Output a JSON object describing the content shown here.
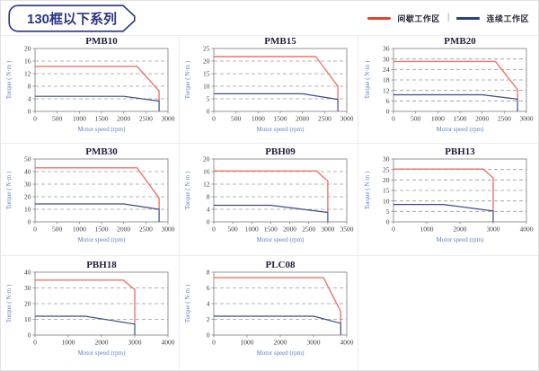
{
  "page": {
    "title": "130框以下系列"
  },
  "legend": {
    "separator": "|",
    "items": [
      {
        "name": "intermittent-zone",
        "label": "间歇工作区",
        "color": "#e0472e"
      },
      {
        "name": "continuous-zone",
        "label": "连续工作区",
        "color": "#27437f"
      }
    ]
  },
  "colors": {
    "curve_red": "#ed7468",
    "curve_blue": "#3a4d85",
    "grid_dash": "#9a9a9a",
    "plot_border": "#8a8a8a",
    "title_text": "#23233c",
    "badge_navy": "#2b3580",
    "cell_border": "#ececec",
    "axis_label_blue": "#5b83c4"
  },
  "chart_data": [
    {
      "type": "line",
      "title": "PMB10",
      "xlabel": "Motor speed (rpm)",
      "ylabel": "Torque ( N·m )",
      "xlim": [
        0,
        3000
      ],
      "ylim": [
        0,
        20
      ],
      "xticks": [
        0,
        500,
        1000,
        1500,
        2000,
        2500,
        3000
      ],
      "yticks": [
        0,
        4,
        8,
        12,
        16,
        20
      ],
      "grid": "horizontal-dashed",
      "legend_position": "none",
      "series": [
        {
          "name": "间歇工作区",
          "color_key": "curve_red",
          "points": [
            [
              0,
              14.3
            ],
            [
              2300,
              14.3
            ],
            [
              2800,
              6.5
            ],
            [
              2800,
              3.3
            ]
          ]
        },
        {
          "name": "连续工作区",
          "color_key": "curve_blue",
          "points": [
            [
              0,
              4.8
            ],
            [
              2000,
              4.8
            ],
            [
              2800,
              3.3
            ],
            [
              2800,
              0
            ]
          ]
        }
      ]
    },
    {
      "type": "line",
      "title": "PMB15",
      "xlabel": "Motor speed (rpm)",
      "ylabel": "Torque ( N·m )",
      "xlim": [
        0,
        3000
      ],
      "ylim": [
        0,
        25
      ],
      "xticks": [
        0,
        500,
        1000,
        1500,
        2000,
        2500,
        3000
      ],
      "yticks": [
        0,
        5,
        10,
        15,
        20,
        25
      ],
      "grid": "horizontal-dashed",
      "legend_position": "none",
      "series": [
        {
          "name": "间歇工作区",
          "color_key": "curve_red",
          "points": [
            [
              0,
              21.8
            ],
            [
              2300,
              21.8
            ],
            [
              2800,
              10
            ],
            [
              2800,
              4.8
            ]
          ]
        },
        {
          "name": "连续工作区",
          "color_key": "curve_blue",
          "points": [
            [
              0,
              7
            ],
            [
              2000,
              7
            ],
            [
              2800,
              4.8
            ],
            [
              2800,
              0
            ]
          ]
        }
      ]
    },
    {
      "type": "line",
      "title": "PMB20",
      "xlabel": "Motor speed (rpm)",
      "ylabel": "Torque ( N·m )",
      "xlim": [
        0,
        3000
      ],
      "ylim": [
        0,
        36
      ],
      "xticks": [
        0,
        500,
        1000,
        1500,
        2000,
        2500,
        3000
      ],
      "yticks": [
        0,
        6,
        12,
        18,
        24,
        30,
        36
      ],
      "grid": "horizontal-dashed",
      "legend_position": "none",
      "series": [
        {
          "name": "间歇工作区",
          "color_key": "curve_red",
          "points": [
            [
              0,
              28.6
            ],
            [
              2300,
              28.6
            ],
            [
              2800,
              12.5
            ],
            [
              2800,
              7
            ]
          ]
        },
        {
          "name": "连续工作区",
          "color_key": "curve_blue",
          "points": [
            [
              0,
              9.5
            ],
            [
              2000,
              9.5
            ],
            [
              2800,
              7
            ],
            [
              2800,
              0
            ]
          ]
        }
      ]
    },
    {
      "type": "line",
      "title": "PMB30",
      "xlabel": "Motor speed (rpm)",
      "ylabel": "Torque ( N·m )",
      "xlim": [
        0,
        3000
      ],
      "ylim": [
        0,
        50
      ],
      "xticks": [
        0,
        500,
        1000,
        1500,
        2000,
        2500,
        3000
      ],
      "yticks": [
        0,
        10,
        20,
        30,
        40,
        50
      ],
      "grid": "horizontal-dashed",
      "legend_position": "none",
      "series": [
        {
          "name": "间歇工作区",
          "color_key": "curve_red",
          "points": [
            [
              0,
              43
            ],
            [
              2300,
              43
            ],
            [
              2800,
              19
            ],
            [
              2800,
              10
            ]
          ]
        },
        {
          "name": "连续工作区",
          "color_key": "curve_blue",
          "points": [
            [
              0,
              14.3
            ],
            [
              2000,
              14.3
            ],
            [
              2800,
              10
            ],
            [
              2800,
              0
            ]
          ]
        }
      ]
    },
    {
      "type": "line",
      "title": "PBH09",
      "xlabel": "Motor speed (rpm)",
      "ylabel": "Torque ( N·m )",
      "xlim": [
        0,
        3500
      ],
      "ylim": [
        0,
        20
      ],
      "xticks": [
        0,
        500,
        1000,
        1500,
        2000,
        2500,
        3000,
        3500
      ],
      "yticks": [
        0,
        4,
        8,
        12,
        16,
        20
      ],
      "grid": "horizontal-dashed",
      "legend_position": "none",
      "series": [
        {
          "name": "间歇工作区",
          "color_key": "curve_red",
          "points": [
            [
              0,
              16.2
            ],
            [
              2700,
              16.2
            ],
            [
              3000,
              13
            ],
            [
              3000,
              3
            ]
          ]
        },
        {
          "name": "连续工作区",
          "color_key": "curve_blue",
          "points": [
            [
              0,
              5.3
            ],
            [
              1500,
              5.3
            ],
            [
              3000,
              3
            ],
            [
              3000,
              0
            ]
          ]
        }
      ]
    },
    {
      "type": "line",
      "title": "PBH13",
      "xlabel": "Motor speed (rpm)",
      "ylabel": "Torque ( N·m )",
      "xlim": [
        0,
        4000
      ],
      "ylim": [
        0,
        30
      ],
      "xticks": [
        0,
        1000,
        2000,
        3000,
        4000
      ],
      "yticks": [
        0,
        5,
        10,
        15,
        20,
        25,
        30
      ],
      "grid": "horizontal-dashed",
      "legend_position": "none",
      "series": [
        {
          "name": "间歇工作区",
          "color_key": "curve_red",
          "points": [
            [
              0,
              25.2
            ],
            [
              2700,
              25.2
            ],
            [
              3000,
              21
            ],
            [
              3000,
              5.2
            ]
          ]
        },
        {
          "name": "连续工作区",
          "color_key": "curve_blue",
          "points": [
            [
              0,
              8.3
            ],
            [
              1500,
              8.3
            ],
            [
              3000,
              5.2
            ],
            [
              3000,
              0
            ]
          ]
        }
      ]
    },
    {
      "type": "line",
      "title": "PBH18",
      "xlabel": "Motor speed (rpm)",
      "ylabel": "Torque ( N·m )",
      "xlim": [
        0,
        4000
      ],
      "ylim": [
        0,
        40
      ],
      "xticks": [
        0,
        1000,
        2000,
        3000,
        4000
      ],
      "yticks": [
        0,
        10,
        20,
        30,
        40
      ],
      "grid": "horizontal-dashed",
      "legend_position": "none",
      "series": [
        {
          "name": "间歇工作区",
          "color_key": "curve_red",
          "points": [
            [
              0,
              35
            ],
            [
              2650,
              35
            ],
            [
              3000,
              29
            ],
            [
              3000,
              7
            ]
          ]
        },
        {
          "name": "连续工作区",
          "color_key": "curve_blue",
          "points": [
            [
              0,
              12
            ],
            [
              1500,
              12
            ],
            [
              3000,
              7
            ],
            [
              3000,
              0
            ]
          ]
        }
      ]
    },
    {
      "type": "line",
      "title": "PLC08",
      "xlabel": "Motor speed (rpm)",
      "ylabel": "Torque ( N·m )",
      "xlim": [
        0,
        4000
      ],
      "ylim": [
        0,
        8
      ],
      "xticks": [
        0,
        1000,
        2000,
        3000,
        4000
      ],
      "yticks": [
        0,
        2,
        4,
        6,
        8
      ],
      "grid": "horizontal-dashed",
      "legend_position": "none",
      "series": [
        {
          "name": "间歇工作区",
          "color_key": "curve_red",
          "points": [
            [
              0,
              7.3
            ],
            [
              3300,
              7.3
            ],
            [
              3820,
              3
            ],
            [
              3820,
              1.5
            ]
          ]
        },
        {
          "name": "连续工作区",
          "color_key": "curve_blue",
          "points": [
            [
              0,
              2.4
            ],
            [
              3000,
              2.4
            ],
            [
              3820,
              1.5
            ],
            [
              3820,
              0
            ]
          ]
        }
      ]
    }
  ]
}
